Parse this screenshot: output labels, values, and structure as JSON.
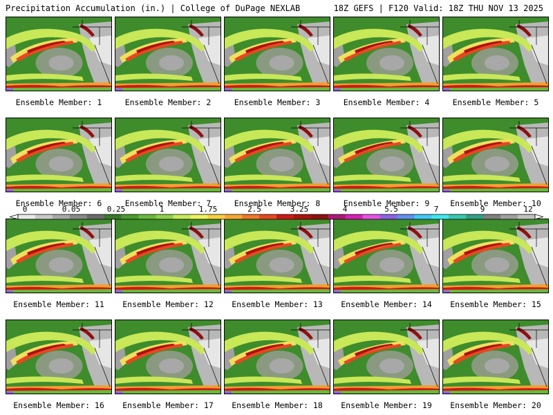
{
  "header": {
    "left": "Precipitation Accumulation (in.) | College of DuPage NEXLAB",
    "right": "18Z GEFS | F120 Valid: 18Z THU NOV 13 2025"
  },
  "panels": [
    {
      "label": "Ensemble Member: 1"
    },
    {
      "label": "Ensemble Member: 2"
    },
    {
      "label": "Ensemble Member: 3"
    },
    {
      "label": "Ensemble Member: 4"
    },
    {
      "label": "Ensemble Member: 5"
    },
    {
      "label": "Ensemble Member: 6"
    },
    {
      "label": "Ensemble Member: 7"
    },
    {
      "label": "Ensemble Member: 8"
    },
    {
      "label": "Ensemble Member: 9"
    },
    {
      "label": "Ensemble Member: 10"
    },
    {
      "label": "Ensemble Member: 11"
    },
    {
      "label": "Ensemble Member: 12"
    },
    {
      "label": "Ensemble Member: 13"
    },
    {
      "label": "Ensemble Member: 14"
    },
    {
      "label": "Ensemble Member: 15"
    },
    {
      "label": "Ensemble Member: 16"
    },
    {
      "label": "Ensemble Member: 17"
    },
    {
      "label": "Ensemble Member: 18"
    },
    {
      "label": "Ensemble Member: 19"
    },
    {
      "label": "Ensemble Member: 20"
    }
  ],
  "colorbar": {
    "ticks": [
      "0",
      "0.05",
      "0.25",
      "1",
      "1.75",
      "2.5",
      "3.25",
      "4",
      "5.5",
      "7",
      "9",
      "12"
    ],
    "colors": [
      "#e8e8e8",
      "#c8c8c8",
      "#a8a8a8",
      "#888888",
      "#6a6a6a",
      "#3a7a2a",
      "#4a9a30",
      "#6ab83a",
      "#8ed048",
      "#c8e858",
      "#f0f060",
      "#f8d040",
      "#f8a830",
      "#f07828",
      "#e84820",
      "#d01818",
      "#b01010",
      "#901010",
      "#b01878",
      "#d820b8",
      "#e850e8",
      "#9060e8",
      "#6090f0",
      "#40c8f8",
      "#40e8f0",
      "#38c8b0",
      "#30a088",
      "#808080",
      "#a0a0a0",
      "#c0c0c0"
    ]
  }
}
